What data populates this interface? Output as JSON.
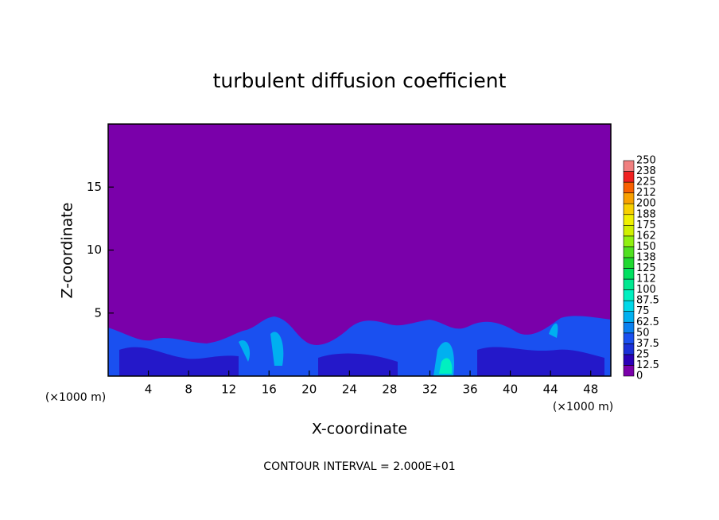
{
  "chart_data": {
    "type": "contour",
    "title": "turbulent diffusion coefficient",
    "x_label": "X-coordinate",
    "y_label": "Z-coordinate",
    "x_unit_left": "(×1000 m)",
    "x_unit_right": "(×1000 m)",
    "annotation": "CONTOUR INTERVAL = 2.000E+01",
    "xlim": [
      0,
      50
    ],
    "xticks": [
      4,
      8,
      12,
      16,
      20,
      24,
      28,
      32,
      36,
      40,
      44,
      48
    ],
    "ylim": [
      0,
      20
    ],
    "yticks": [
      5,
      10,
      15
    ],
    "background_color": "#7a00aa",
    "colorbar": {
      "levels": [
        0,
        12.5,
        25,
        37.5,
        50,
        62.5,
        75,
        87.5,
        100,
        112,
        125,
        138,
        150,
        162,
        175,
        188,
        200,
        212,
        225,
        238,
        250
      ],
      "colors": [
        "#7a00aa",
        "#2a00b8",
        "#1a30d8",
        "#1a50f0",
        "#0a80f0",
        "#00b0f0",
        "#00d8e8",
        "#00f0c0",
        "#00e890",
        "#00e060",
        "#20d830",
        "#50e020",
        "#90f010",
        "#d0f000",
        "#f0f000",
        "#f8d000",
        "#f8a000",
        "#f86000",
        "#f02020",
        "#f08080"
      ]
    }
  }
}
